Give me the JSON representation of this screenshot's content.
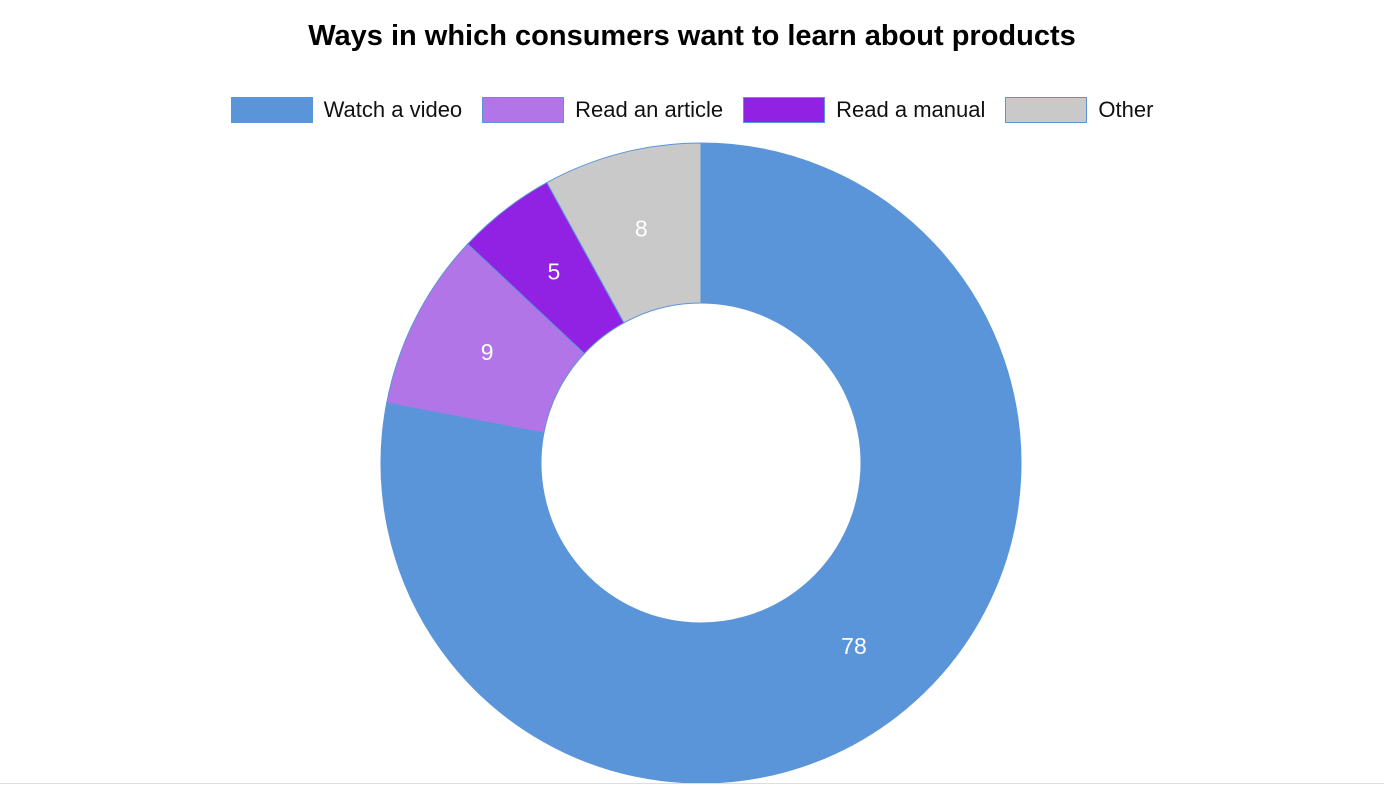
{
  "chart_data": {
    "type": "doughnut",
    "title": "Ways in which consumers want to learn about products",
    "categories": [
      "Watch a video",
      "Read an article",
      "Read a manual",
      "Other"
    ],
    "values": [
      78,
      9,
      5,
      8
    ],
    "colors": [
      "#5b95d9",
      "#b175e8",
      "#9122e3",
      "#c9c9c9"
    ],
    "border_color": "#5b95d9",
    "legend_position": "top",
    "start_angle": "top, clockwise"
  }
}
